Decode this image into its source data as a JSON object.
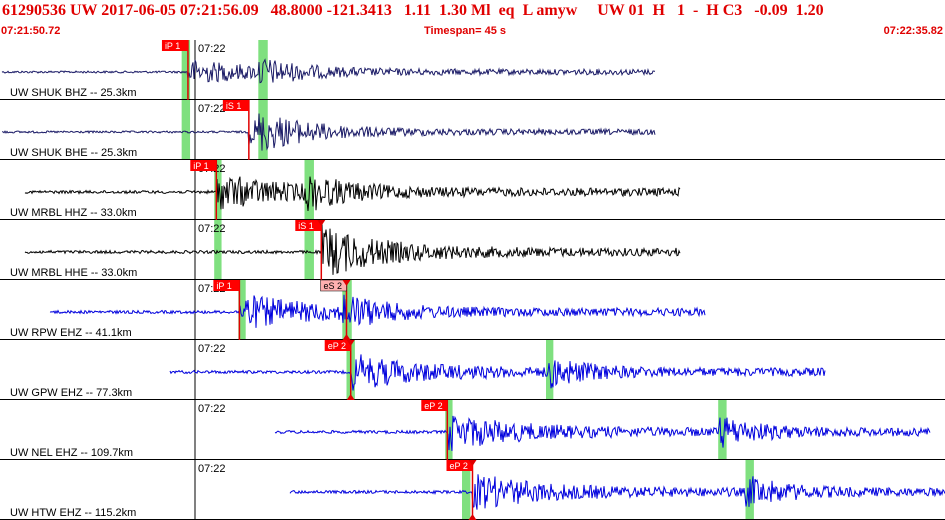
{
  "header": {
    "event_info": "61290536 UW 2017-06-05 07:21:56.09   48.8000 -121.3413   1.11  1.30 Ml  eq  L amyw     UW 01  H   1  -  H C3   -0.09  1.20",
    "start_time": "07:21:50.72",
    "timespan": "Timespan=  45 s",
    "end_time": "07:22:35.82"
  },
  "colors": {
    "header_text": "#e00000",
    "pick_label_bg": "#ff0000",
    "pick_label_text": "#ffffff",
    "pick_label_alt_bg": "#ffb0b0",
    "coda_window": "#7fe07f",
    "marker": "#e00000",
    "grid": "#000000"
  },
  "panels": [
    {
      "label": "UW SHUK BHZ -- 25.3km",
      "tick": "07:22",
      "color": "#1a1a66",
      "picks": [
        {
          "text": "iP 1",
          "t": 8.95,
          "alt": false,
          "triangle_top": false,
          "triangle_bottom": false
        }
      ],
      "green": [
        [
          8.65,
          9.05
        ],
        [
          12.3,
          12.75
        ]
      ]
    },
    {
      "label": "UW SHUK BHE -- 25.3km",
      "tick": "07:22",
      "color": "#1a1a66",
      "picks": [
        {
          "text": "iS 1",
          "t": 11.85,
          "alt": false,
          "triangle_top": false,
          "triangle_bottom": false
        }
      ],
      "green": [
        [
          8.65,
          9.05
        ],
        [
          12.3,
          12.75
        ]
      ]
    },
    {
      "label": "UW MRBL HHZ -- 33.0km",
      "tick": "07:22",
      "color": "#000000",
      "picks": [
        {
          "text": "iP 1",
          "t": 10.3,
          "alt": false,
          "triangle_top": false,
          "triangle_bottom": false
        }
      ],
      "green": [
        [
          10.2,
          10.55
        ],
        [
          14.5,
          14.95
        ]
      ]
    },
    {
      "label": "UW MRBL HHE -- 33.0km",
      "tick": "07:22",
      "color": "#000000",
      "picks": [
        {
          "text": "iS 1",
          "t": 15.3,
          "alt": false,
          "triangle_top": true,
          "triangle_bottom": false
        }
      ],
      "green": [
        [
          10.2,
          10.55
        ],
        [
          14.5,
          14.95
        ]
      ]
    },
    {
      "label": "UW RPW EHZ -- 41.1km",
      "tick": "07:22",
      "color": "#0000dd",
      "picks": [
        {
          "text": "iP 1",
          "t": 11.4,
          "alt": false,
          "triangle_top": false,
          "triangle_bottom": false
        },
        {
          "text": "eS 2",
          "t": 16.5,
          "alt": true,
          "triangle_top": true,
          "triangle_bottom": true
        }
      ],
      "green": [
        [
          11.35,
          11.7
        ],
        [
          16.3,
          16.75
        ]
      ]
    },
    {
      "label": "UW GPW EHZ -- 77.3km",
      "tick": "07:22",
      "color": "#0000dd",
      "picks": [
        {
          "text": "eP 2",
          "t": 16.7,
          "alt": false,
          "triangle_top": true,
          "triangle_bottom": true
        }
      ],
      "green": [
        [
          16.5,
          16.9
        ],
        [
          26.0,
          26.35
        ]
      ]
    },
    {
      "label": "UW NEL EHZ -- 109.7km",
      "tick": "07:22",
      "color": "#0000dd",
      "picks": [
        {
          "text": "eP 2",
          "t": 21.3,
          "alt": false,
          "triangle_top": false,
          "triangle_bottom": false
        }
      ],
      "green": [
        [
          21.2,
          21.55
        ],
        [
          34.2,
          34.6
        ]
      ]
    },
    {
      "label": "UW HTW EHZ -- 115.2km",
      "tick": "07:22",
      "color": "#0000dd",
      "picks": [
        {
          "text": "eP 2",
          "t": 22.5,
          "alt": false,
          "triangle_top": true,
          "triangle_bottom": true
        }
      ],
      "green": [
        [
          22.0,
          22.4
        ],
        [
          35.5,
          35.9
        ]
      ]
    }
  ]
}
